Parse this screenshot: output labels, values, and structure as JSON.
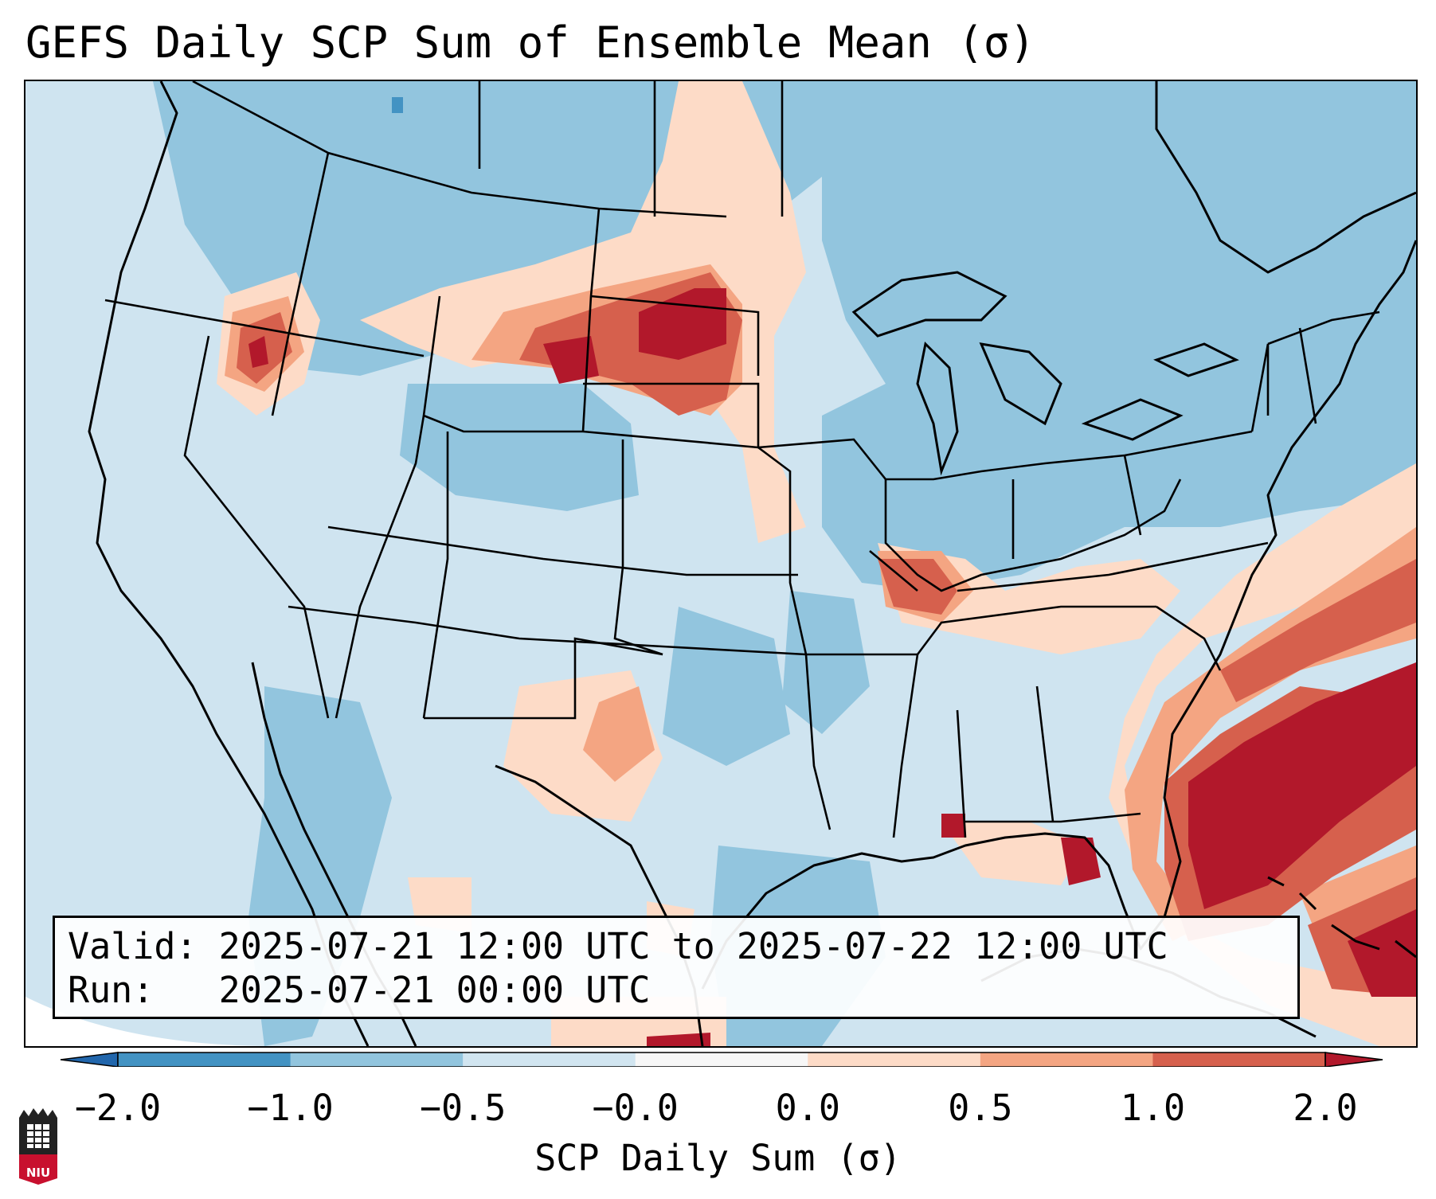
{
  "title": "GEFS Daily SCP Sum of Ensemble Mean (σ)",
  "info": {
    "valid_label": "Valid:",
    "valid_value": "2025-07-21 12:00 UTC to 2025-07-22 12:00 UTC",
    "run_label": "Run:",
    "run_value": "2025-07-21 00:00 UTC"
  },
  "colorbar": {
    "label": "SCP Daily Sum (σ)",
    "ticks": [
      "−2.0",
      "−1.0",
      "−0.5",
      "−0.0",
      "0.0",
      "0.5",
      "1.0",
      "2.0"
    ],
    "bins": [
      {
        "from": "−2.0",
        "to": "−1.0",
        "color": "#4393c3"
      },
      {
        "from": "−1.0",
        "to": "−0.5",
        "color": "#92c5de"
      },
      {
        "from": "−0.5",
        "to": "−0.0",
        "color": "#d1e5f0"
      },
      {
        "from": "−0.0",
        "to": "0.0",
        "color": "#f7f7f7"
      },
      {
        "from": "0.0",
        "to": "0.5",
        "color": "#fddbc7"
      },
      {
        "from": "0.5",
        "to": "1.0",
        "color": "#f4a582"
      },
      {
        "from": "1.0",
        "to": "2.0",
        "color": "#d6604d"
      }
    ],
    "under_color": "#2166ac",
    "over_color": "#b2182b"
  },
  "logo_text": "NIU",
  "regions": [
    {
      "name": "northern-plains-max",
      "level": "over"
    },
    {
      "name": "southeast-atlantic-max",
      "level": "over"
    },
    {
      "name": "ohio-valley-enhanced",
      "level": "1.0"
    },
    {
      "name": "southern-plains-enhanced",
      "level": "0.5"
    },
    {
      "name": "florida-panhandle-max",
      "level": "over"
    }
  ]
}
